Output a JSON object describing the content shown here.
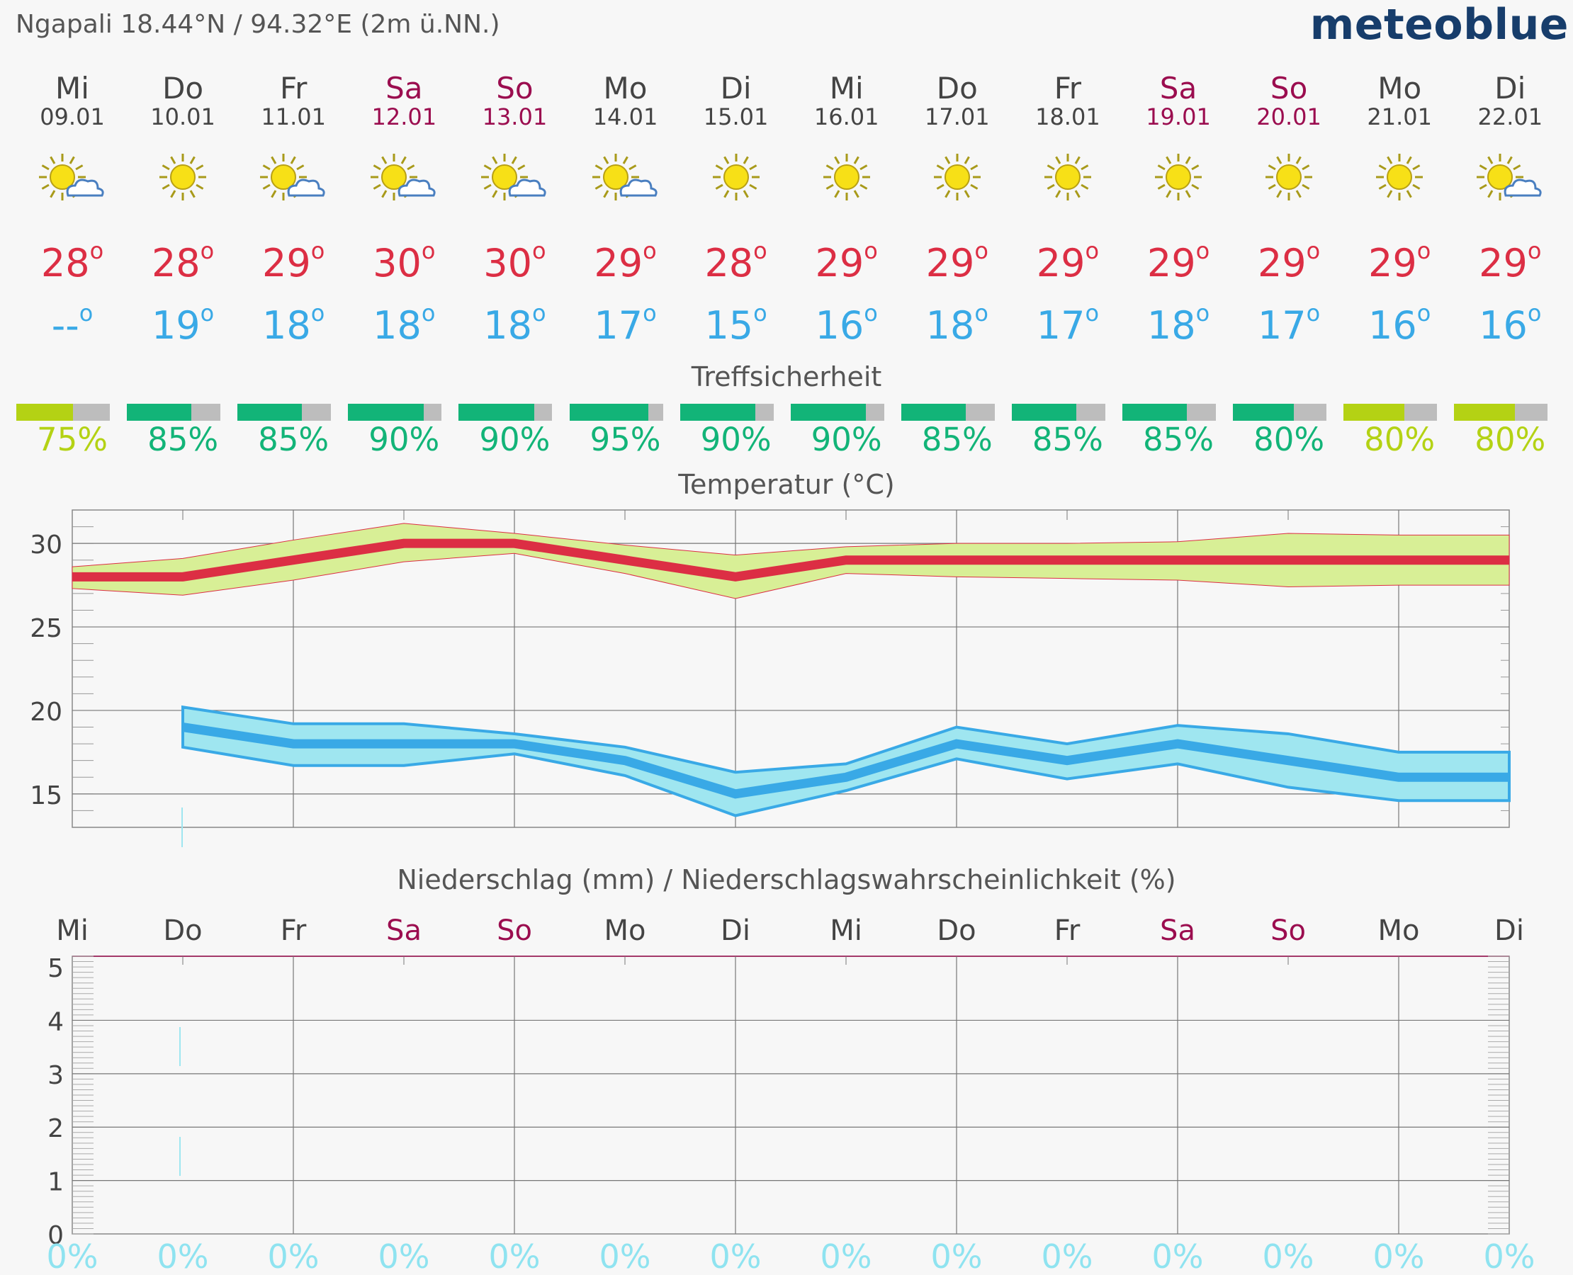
{
  "header": {
    "location": "Ngapali  18.44°N / 94.32°E (2m ü.NN.)",
    "brand": "meteoblue"
  },
  "colors": {
    "max_temp": "#dc2e44",
    "min_temp": "#39a9e6",
    "weekend": "#9b0d4f",
    "conf_green": "#12b478",
    "conf_lime": "#b4d214",
    "precip_pct": "#8fe3f0"
  },
  "days": [
    {
      "name": "Mi",
      "date": "09.01",
      "icon": "sun-cloud-icon",
      "tmax": "28",
      "tmin": "--",
      "conf": "75%",
      "conf_val": 75,
      "precip_pct": "0%",
      "weekend": false
    },
    {
      "name": "Do",
      "date": "10.01",
      "icon": "sun-icon",
      "tmax": "28",
      "tmin": "19",
      "conf": "85%",
      "conf_val": 85,
      "precip_pct": "0%",
      "weekend": false
    },
    {
      "name": "Fr",
      "date": "11.01",
      "icon": "sun-cloud-icon",
      "tmax": "29",
      "tmin": "18",
      "conf": "85%",
      "conf_val": 85,
      "precip_pct": "0%",
      "weekend": false
    },
    {
      "name": "Sa",
      "date": "12.01",
      "icon": "sun-cloud-icon",
      "tmax": "30",
      "tmin": "18",
      "conf": "90%",
      "conf_val": 90,
      "precip_pct": "0%",
      "weekend": true
    },
    {
      "name": "So",
      "date": "13.01",
      "icon": "sun-cloud-icon",
      "tmax": "30",
      "tmin": "18",
      "conf": "90%",
      "conf_val": 90,
      "precip_pct": "0%",
      "weekend": true
    },
    {
      "name": "Mo",
      "date": "14.01",
      "icon": "sun-cloud-icon",
      "tmax": "29",
      "tmin": "17",
      "conf": "95%",
      "conf_val": 95,
      "precip_pct": "0%",
      "weekend": false
    },
    {
      "name": "Di",
      "date": "15.01",
      "icon": "sun-icon",
      "tmax": "28",
      "tmin": "15",
      "conf": "90%",
      "conf_val": 90,
      "precip_pct": "0%",
      "weekend": false
    },
    {
      "name": "Mi",
      "date": "16.01",
      "icon": "sun-icon",
      "tmax": "29",
      "tmin": "16",
      "conf": "90%",
      "conf_val": 90,
      "precip_pct": "0%",
      "weekend": false
    },
    {
      "name": "Do",
      "date": "17.01",
      "icon": "sun-icon",
      "tmax": "29",
      "tmin": "18",
      "conf": "85%",
      "conf_val": 85,
      "precip_pct": "0%",
      "weekend": false
    },
    {
      "name": "Fr",
      "date": "18.01",
      "icon": "sun-icon",
      "tmax": "29",
      "tmin": "17",
      "conf": "85%",
      "conf_val": 85,
      "precip_pct": "0%",
      "weekend": false
    },
    {
      "name": "Sa",
      "date": "19.01",
      "icon": "sun-icon",
      "tmax": "29",
      "tmin": "18",
      "conf": "85%",
      "conf_val": 85,
      "precip_pct": "0%",
      "weekend": true
    },
    {
      "name": "So",
      "date": "20.01",
      "icon": "sun-icon",
      "tmax": "29",
      "tmin": "17",
      "conf": "80%",
      "conf_val": 80,
      "precip_pct": "0%",
      "weekend": true
    },
    {
      "name": "Mo",
      "date": "21.01",
      "icon": "sun-icon",
      "tmax": "29",
      "tmin": "16",
      "conf": "80%",
      "conf_val": 80,
      "precip_pct": "0%",
      "weekend": false
    },
    {
      "name": "Di",
      "date": "22.01",
      "icon": "sun-cloud-icon",
      "tmax": "29",
      "tmin": "16",
      "conf": "80%",
      "conf_val": 80,
      "precip_pct": "0%",
      "weekend": false
    }
  ],
  "degree_symbol": "o",
  "sections": {
    "confidence_title": "Treffsicherheit",
    "temp_title": "Temperatur (°C)",
    "precip_title": "Niederschlag (mm) / Niederschlagswahrscheinlichkeit (%)"
  },
  "chart_data": [
    {
      "type": "line",
      "title": "Temperatur (°C)",
      "categories": [
        "Mi",
        "Do",
        "Fr",
        "Sa",
        "So",
        "Mo",
        "Di",
        "Mi",
        "Do",
        "Fr",
        "Sa",
        "So",
        "Mo",
        "Di"
      ],
      "ylim": [
        13,
        32
      ],
      "yticks": [
        "15",
        "20",
        "25",
        "30"
      ],
      "series": [
        {
          "values": [
            28,
            28,
            29,
            30,
            30,
            29,
            28,
            29,
            29,
            29,
            29,
            29,
            29,
            29
          ],
          "band_upper": [
            28.6,
            29.1,
            30.2,
            31.2,
            30.6,
            29.9,
            29.3,
            29.8,
            30.0,
            30.0,
            30.1,
            30.6,
            30.5,
            30.5
          ],
          "band_lower": [
            27.3,
            26.9,
            27.8,
            28.9,
            29.4,
            28.2,
            26.7,
            28.2,
            28.0,
            27.9,
            27.8,
            27.4,
            27.5,
            27.5
          ]
        },
        {
          "values": [
            null,
            19,
            18,
            18,
            18,
            17,
            15,
            16,
            18,
            17,
            18,
            17,
            16,
            16
          ],
          "band_upper": [
            null,
            20.2,
            19.2,
            19.2,
            18.6,
            17.8,
            16.3,
            16.8,
            19.0,
            18.0,
            19.1,
            18.6,
            17.5,
            17.5
          ],
          "band_lower": [
            null,
            17.8,
            16.7,
            16.7,
            17.4,
            16.1,
            13.7,
            15.2,
            17.1,
            15.9,
            16.8,
            15.4,
            14.6,
            14.6
          ]
        }
      ]
    },
    {
      "type": "bar",
      "title": "Niederschlag (mm) / Niederschlagswahrscheinlichkeit (%)",
      "categories": [
        "Mi",
        "Do",
        "Fr",
        "Sa",
        "So",
        "Mo",
        "Di",
        "Mi",
        "Do",
        "Fr",
        "Sa",
        "So",
        "Mo",
        "Di"
      ],
      "values": [
        0,
        0,
        0,
        0,
        0,
        0,
        0,
        0,
        0,
        0,
        0,
        0,
        0,
        0
      ],
      "probability": [
        "0%",
        "0%",
        "0%",
        "0%",
        "0%",
        "0%",
        "0%",
        "0%",
        "0%",
        "0%",
        "0%",
        "0%",
        "0%",
        "0%"
      ],
      "ylim": [
        0,
        5.2
      ],
      "yticks": [
        "0",
        "1",
        "2",
        "3",
        "4",
        "5"
      ]
    }
  ]
}
